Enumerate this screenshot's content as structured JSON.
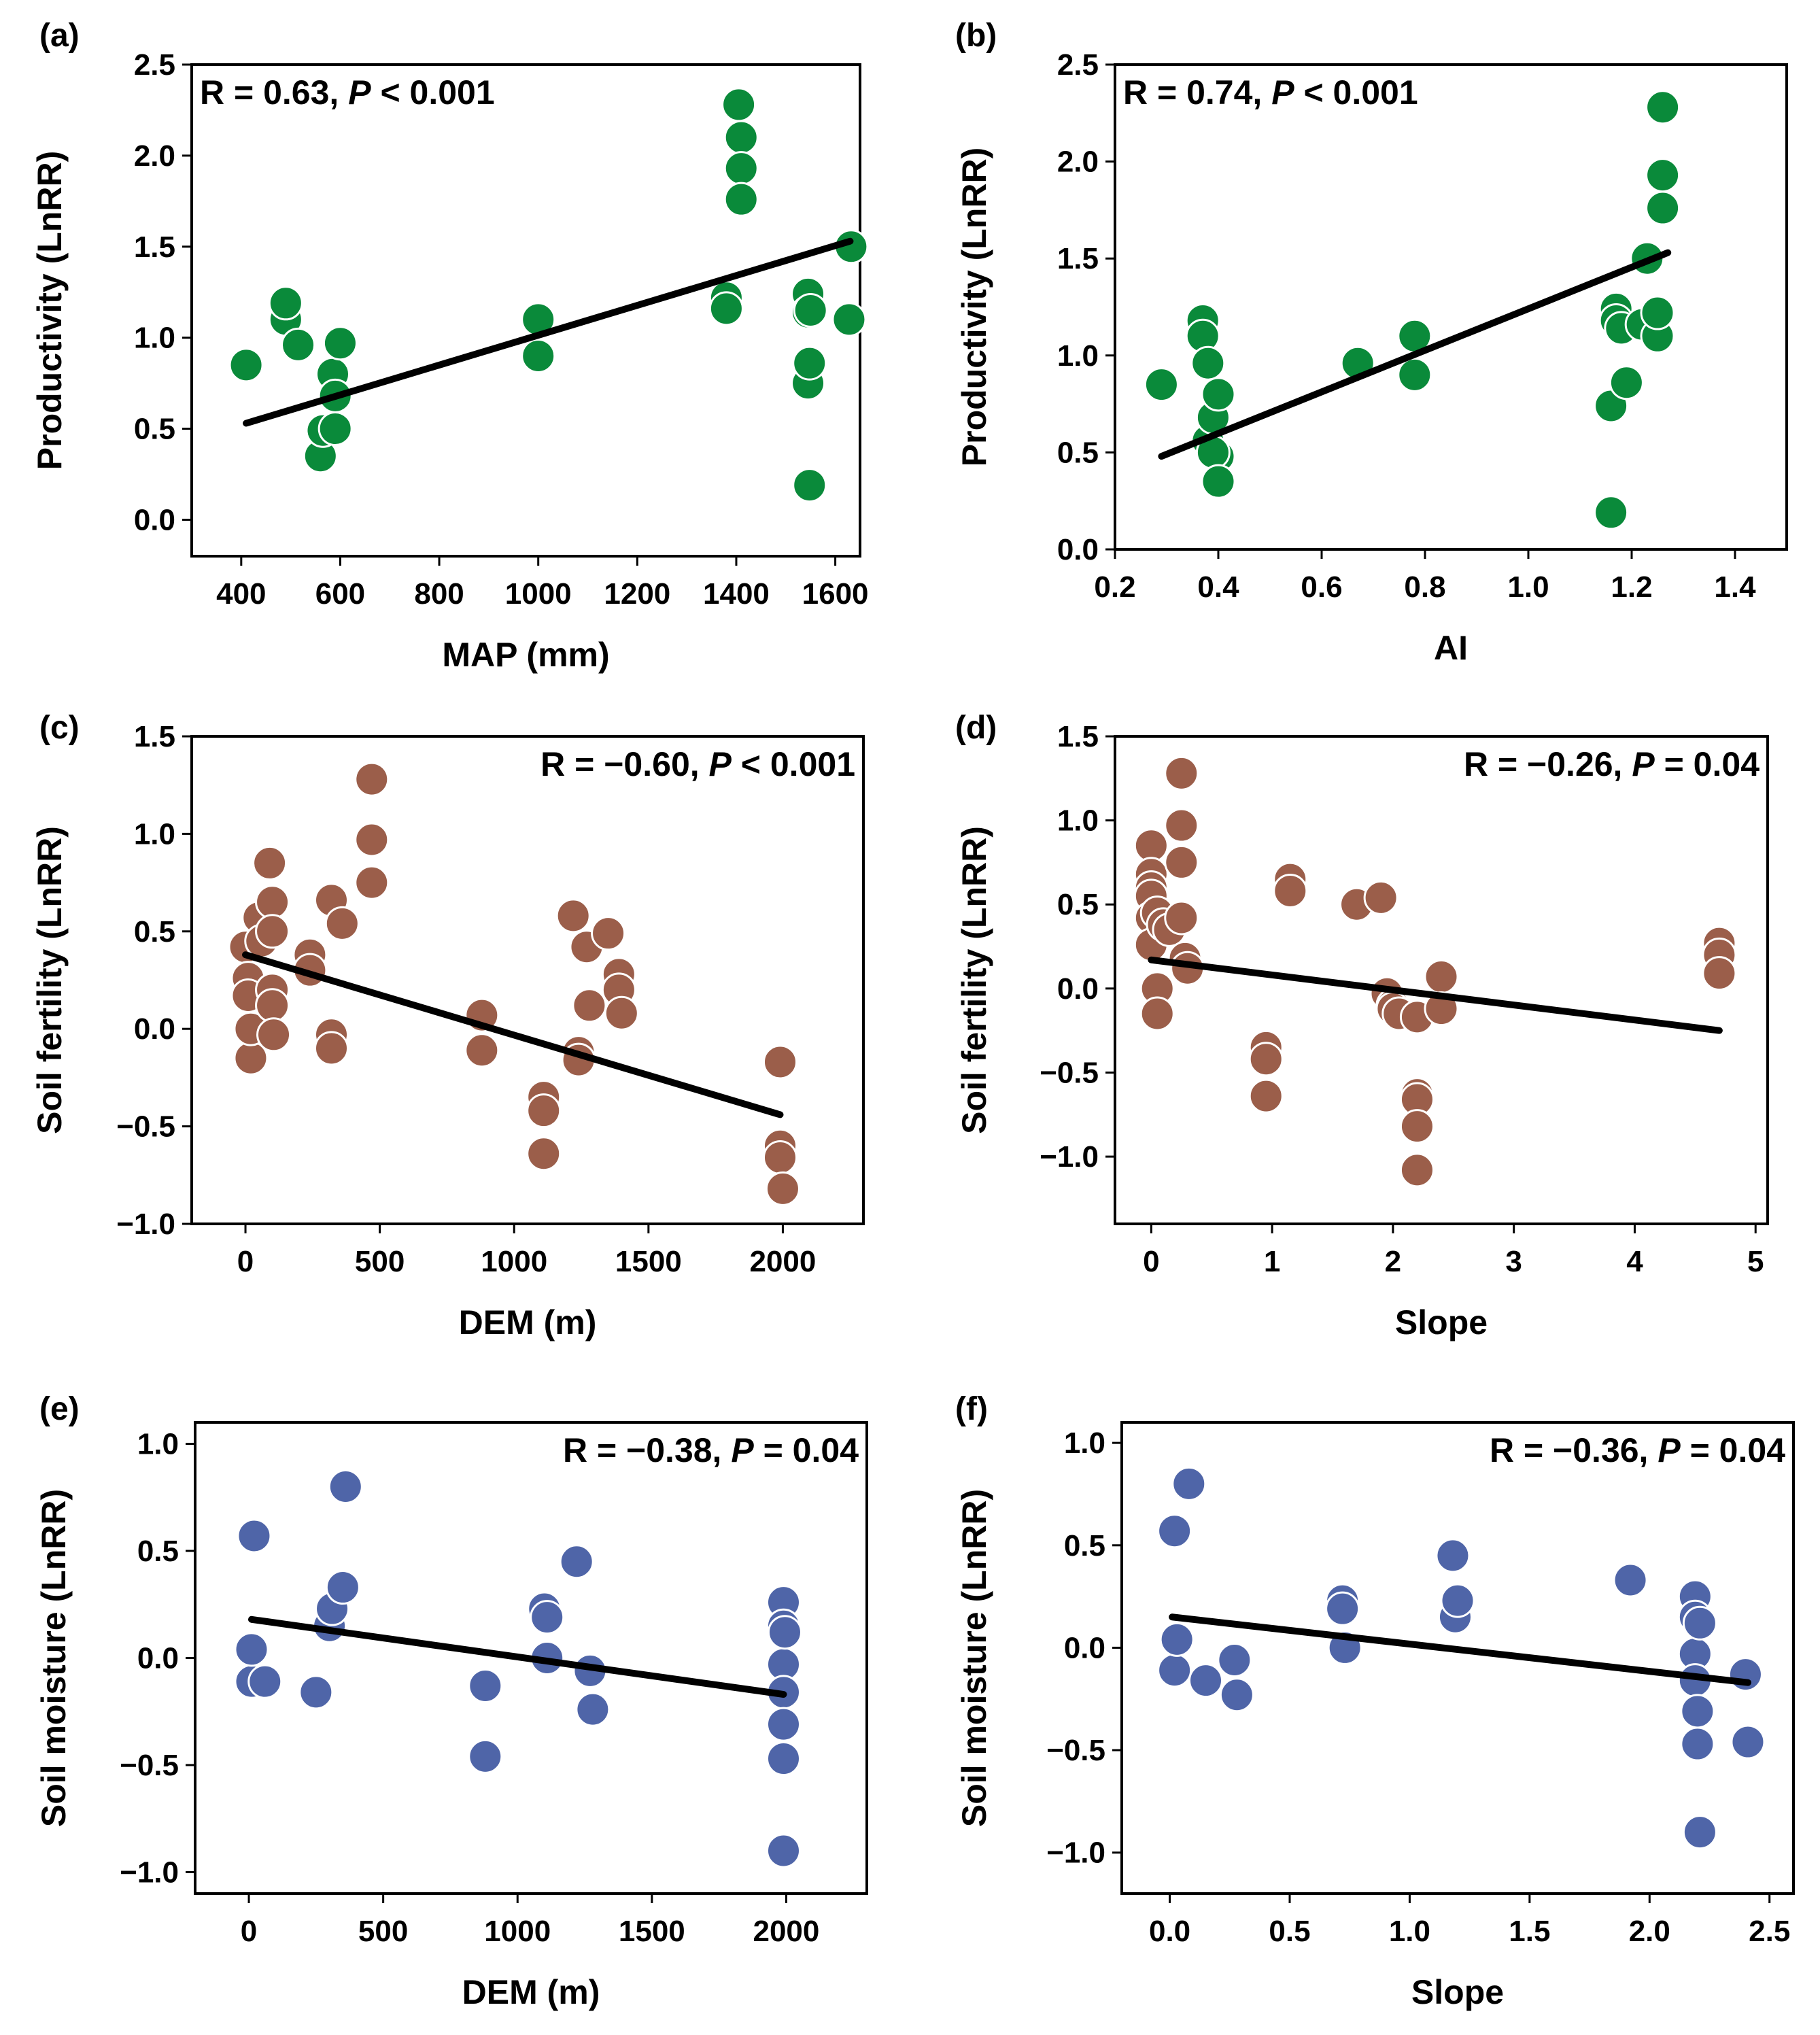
{
  "chart_data": [
    {
      "panel": "(a)",
      "type": "scatter",
      "xlabel": "MAP (mm)",
      "ylabel": "Productivity (LnRR)",
      "xlim": [
        300,
        1650
      ],
      "ylim": [
        -0.2,
        2.5
      ],
      "xticks": [
        400,
        600,
        800,
        1000,
        1200,
        1400,
        1600
      ],
      "xtick_labels": [
        "400",
        "600",
        "800",
        "1000",
        "1200",
        "1400",
        "1600"
      ],
      "yticks": [
        0.0,
        0.5,
        1.0,
        1.5,
        2.0,
        2.5
      ],
      "ytick_labels": [
        "0.0",
        "0.5",
        "1.0",
        "1.5",
        "2.0",
        "2.5"
      ],
      "stat": {
        "r": "R = 0.63, ",
        "p_label": "P",
        "p_rest": " < 0.001",
        "position": "top-left"
      },
      "color": "#0a8a3a",
      "fit": {
        "x": [
          410,
          1630
        ],
        "y": [
          0.53,
          1.53
        ]
      },
      "points": {
        "x": [
          410,
          490,
          490,
          515,
          560,
          565,
          585,
          590,
          590,
          600,
          1000,
          1000,
          1380,
          1380,
          1405,
          1410,
          1410,
          1410,
          1545,
          1545,
          1545,
          1548,
          1548,
          1550,
          1628,
          1632
        ],
        "y": [
          0.85,
          1.1,
          1.19,
          0.96,
          0.35,
          0.49,
          0.8,
          0.5,
          0.68,
          0.97,
          1.1,
          0.9,
          1.22,
          1.16,
          2.28,
          2.1,
          1.93,
          1.76,
          1.24,
          1.14,
          0.75,
          0.86,
          0.19,
          1.15,
          1.1,
          1.5
        ]
      }
    },
    {
      "panel": "(b)",
      "type": "scatter",
      "xlabel": "AI",
      "ylabel": "Productivity (LnRR)",
      "xlim": [
        0.2,
        1.5
      ],
      "ylim": [
        0.0,
        2.5
      ],
      "xticks": [
        0.2,
        0.4,
        0.6,
        0.8,
        1.0,
        1.2,
        1.4
      ],
      "xtick_labels": [
        "0.2",
        "0.4",
        "0.6",
        "0.8",
        "1.0",
        "1.2",
        "1.4"
      ],
      "yticks": [
        0.0,
        0.5,
        1.0,
        1.5,
        2.0,
        2.5
      ],
      "ytick_labels": [
        "0.0",
        "0.5",
        "1.0",
        "1.5",
        "2.0",
        "2.5"
      ],
      "stat": {
        "r": "R = 0.74, ",
        "p_label": "P",
        "p_rest": " < 0.001",
        "position": "top-left"
      },
      "color": "#0a8a3a",
      "fit": {
        "x": [
          0.29,
          1.27
        ],
        "y": [
          0.48,
          1.53
        ]
      },
      "points": {
        "x": [
          0.29,
          0.37,
          0.37,
          0.38,
          0.38,
          0.39,
          0.4,
          0.4,
          0.39,
          0.4,
          0.67,
          0.78,
          0.78,
          1.16,
          1.16,
          1.17,
          1.17,
          1.18,
          1.19,
          1.22,
          1.23,
          1.25,
          1.25,
          1.26,
          1.26,
          1.26
        ],
        "y": [
          0.85,
          1.18,
          1.1,
          0.96,
          0.56,
          0.68,
          0.8,
          0.48,
          0.5,
          0.35,
          0.96,
          1.1,
          0.9,
          0.19,
          0.74,
          1.24,
          1.18,
          1.14,
          0.86,
          1.16,
          1.5,
          1.1,
          1.22,
          1.76,
          1.93,
          2.28
        ]
      }
    },
    {
      "panel": "(c)",
      "type": "scatter",
      "xlabel": "DEM (m)",
      "ylabel": "Soil fertility (LnRR)",
      "xlim": [
        -200,
        2300
      ],
      "ylim": [
        -1.0,
        1.5
      ],
      "xticks": [
        0,
        500,
        1000,
        1500,
        2000
      ],
      "xtick_labels": [
        "0",
        "500",
        "1000",
        "1500",
        "2000"
      ],
      "yticks": [
        -1.0,
        -0.5,
        0.0,
        0.5,
        1.0,
        1.5
      ],
      "ytick_labels": [
        "−1.0",
        "−0.5",
        "0.0",
        "0.5",
        "1.0",
        "1.5"
      ],
      "stat": {
        "r": "R = −0.60, ",
        "p_label": "P",
        "p_rest": " < 0.001",
        "position": "top-right"
      },
      "color": "#9b5e4a",
      "fit": {
        "x": [
          0,
          1990
        ],
        "y": [
          0.38,
          -0.44
        ]
      },
      "points": {
        "x": [
          0,
          10,
          10,
          20,
          20,
          50,
          60,
          90,
          100,
          100,
          100,
          100,
          105,
          240,
          240,
          320,
          320,
          320,
          360,
          470,
          470,
          470,
          880,
          880,
          1110,
          1110,
          1110,
          1220,
          1240,
          1240,
          1270,
          1280,
          1350,
          1390,
          1390,
          1400,
          1990,
          1990,
          1990,
          2000
        ],
        "y": [
          0.42,
          0.26,
          0.17,
          -0.15,
          0.0,
          0.57,
          0.45,
          0.85,
          0.65,
          0.5,
          0.2,
          0.12,
          -0.03,
          0.38,
          0.3,
          0.66,
          -0.03,
          -0.1,
          0.54,
          1.28,
          0.97,
          0.75,
          0.07,
          -0.11,
          -0.35,
          -0.42,
          -0.64,
          0.58,
          -0.12,
          -0.16,
          0.42,
          0.12,
          0.49,
          0.28,
          0.2,
          0.08,
          -0.17,
          -0.6,
          -0.66,
          -0.82
        ]
      }
    },
    {
      "panel": "(d)",
      "type": "scatter",
      "xlabel": "Slope",
      "ylabel": "Soil fertility (LnRR)",
      "xlim": [
        -0.3,
        5.1
      ],
      "ylim": [
        -1.4,
        1.5
      ],
      "xticks": [
        0,
        1,
        2,
        3,
        4,
        5
      ],
      "xtick_labels": [
        "0",
        "1",
        "2",
        "3",
        "4",
        "5"
      ],
      "yticks": [
        -1.0,
        -0.5,
        0.0,
        0.5,
        1.0,
        1.5
      ],
      "ytick_labels": [
        "−1.0",
        "−0.5",
        "0.0",
        "0.5",
        "1.0",
        "1.5"
      ],
      "stat": {
        "r": "R = −0.26, ",
        "p_label": "P",
        "p_rest": " = 0.04",
        "position": "top-right"
      },
      "color": "#9b5e4a",
      "fit": {
        "x": [
          0,
          4.7
        ],
        "y": [
          0.17,
          -0.25
        ]
      },
      "points": {
        "x": [
          0,
          0,
          0,
          0,
          0,
          0,
          0.05,
          0.05,
          0.05,
          0.1,
          0.15,
          0.25,
          0.25,
          0.25,
          0.25,
          0.28,
          0.3,
          0.95,
          0.95,
          0.95,
          1.15,
          1.15,
          1.7,
          1.9,
          1.95,
          2.0,
          2.0,
          2.05,
          2.2,
          2.2,
          2.2,
          2.2,
          2.2,
          2.4,
          2.4,
          4.7,
          4.7,
          4.7
        ],
        "y": [
          0.85,
          0.68,
          0.6,
          0.55,
          0.42,
          0.26,
          0.0,
          -0.15,
          0.45,
          0.38,
          0.35,
          1.28,
          0.97,
          0.75,
          0.42,
          0.18,
          0.12,
          -0.35,
          -0.42,
          -0.64,
          0.65,
          0.58,
          0.5,
          0.54,
          -0.03,
          -0.1,
          -0.12,
          -0.15,
          -0.17,
          -0.63,
          -0.66,
          -0.82,
          -1.08,
          0.07,
          -0.12,
          0.27,
          0.2,
          0.09
        ]
      }
    },
    {
      "panel": "(e)",
      "type": "scatter",
      "xlabel": "DEM (m)",
      "ylabel": "Soil moisture (LnRR)",
      "xlim": [
        -200,
        2300
      ],
      "ylim": [
        -1.1,
        1.1
      ],
      "xticks": [
        0,
        500,
        1000,
        1500,
        2000
      ],
      "xtick_labels": [
        "0",
        "500",
        "1000",
        "1500",
        "2000"
      ],
      "yticks": [
        -1.0,
        -0.5,
        0.0,
        0.5,
        1.0
      ],
      "ytick_labels": [
        "−1.0",
        "−0.5",
        "0.0",
        "0.5",
        "1.0"
      ],
      "stat": {
        "r": "R = −0.38, ",
        "p_label": "P",
        "p_rest": " = 0.04",
        "position": "top-right"
      },
      "color": "#4f65a8",
      "fit": {
        "x": [
          10,
          1990
        ],
        "y": [
          0.18,
          -0.17
        ]
      },
      "points": {
        "x": [
          10,
          10,
          20,
          60,
          250,
          300,
          310,
          350,
          360,
          880,
          880,
          1100,
          1110,
          1110,
          1220,
          1270,
          1280,
          1990,
          1990,
          1990,
          1990,
          1990,
          1990,
          1990,
          1995
        ],
        "y": [
          -0.11,
          0.04,
          0.57,
          -0.11,
          -0.16,
          0.15,
          0.23,
          0.33,
          0.8,
          -0.13,
          -0.46,
          0.23,
          0.19,
          0.0,
          0.45,
          -0.06,
          -0.24,
          0.26,
          0.15,
          -0.03,
          -0.16,
          -0.31,
          -0.47,
          -0.9,
          0.12
        ]
      }
    },
    {
      "panel": "(f)",
      "type": "scatter",
      "xlabel": "Slope",
      "ylabel": "Soil moisture (LnRR)",
      "xlim": [
        -0.2,
        2.6
      ],
      "ylim": [
        -1.2,
        1.1
      ],
      "xticks": [
        0.0,
        0.5,
        1.0,
        1.5,
        2.0,
        2.5
      ],
      "xtick_labels": [
        "0.0",
        "0.5",
        "1.0",
        "1.5",
        "2.0",
        "2.5"
      ],
      "yticks": [
        -1.0,
        -0.5,
        0.0,
        0.5,
        1.0
      ],
      "ytick_labels": [
        "−1.0",
        "−0.5",
        "0.0",
        "0.5",
        "1.0"
      ],
      "stat": {
        "r": "R = −0.36, ",
        "p_label": "P",
        "p_rest": " = 0.04",
        "position": "top-right"
      },
      "color": "#4f65a8",
      "fit": {
        "x": [
          0.01,
          2.41
        ],
        "y": [
          0.15,
          -0.17
        ]
      },
      "points": {
        "x": [
          0.02,
          0.02,
          0.03,
          0.08,
          0.15,
          0.27,
          0.28,
          0.72,
          0.72,
          0.73,
          1.18,
          1.19,
          1.2,
          1.92,
          2.19,
          2.19,
          2.19,
          2.19,
          2.2,
          2.2,
          2.21,
          2.21,
          2.4,
          2.41
        ],
        "y": [
          -0.11,
          0.57,
          0.04,
          0.8,
          -0.16,
          -0.06,
          -0.23,
          0.23,
          0.19,
          0.0,
          0.45,
          0.15,
          0.23,
          0.33,
          0.25,
          0.15,
          -0.03,
          -0.16,
          -0.31,
          -0.47,
          -0.9,
          0.12,
          -0.13,
          -0.46
        ]
      }
    }
  ]
}
